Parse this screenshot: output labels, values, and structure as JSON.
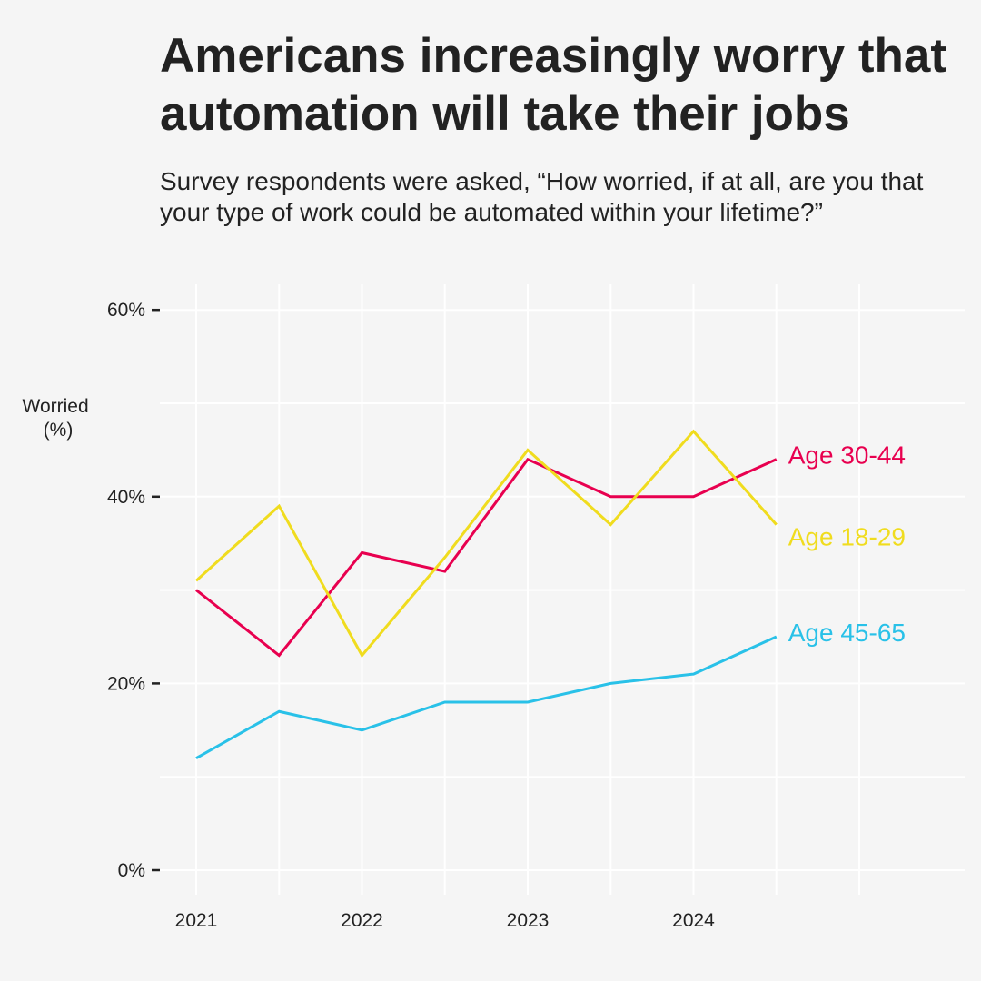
{
  "chart_data": {
    "type": "line",
    "title": "Americans increasingly worry that automation will take their jobs",
    "subtitle": "Survey respondents were asked, “How worried, if at all, are you that your type of work could be automated within your lifetime?”",
    "ylabel": "Worried (%)",
    "xlabel": "",
    "x": [
      2021,
      2021.5,
      2022,
      2022.5,
      2023,
      2023.5,
      2024,
      2024.5
    ],
    "xlim": [
      2020.8,
      2025.5
    ],
    "x_ticks": [
      2021,
      2022,
      2023,
      2024
    ],
    "x_tick_labels": [
      "2021",
      "2022",
      "2023",
      "2024"
    ],
    "ylim": [
      0,
      60
    ],
    "y_ticks": [
      0,
      20,
      40,
      60
    ],
    "y_tick_labels": [
      "0%",
      "20%",
      "40%",
      "60%"
    ],
    "grid": true,
    "legend": "direct labels at line ends",
    "series": [
      {
        "name": "Age 30-44",
        "color": "#e8004f",
        "values": [
          30,
          23,
          34,
          32,
          44,
          40,
          40,
          44
        ]
      },
      {
        "name": "Age 18-29",
        "color": "#f0dc1e",
        "values": [
          31,
          39,
          23,
          33.5,
          45,
          37,
          47,
          37
        ]
      },
      {
        "name": "Age 45-65",
        "color": "#29c1e8",
        "values": [
          12,
          17,
          15,
          18,
          18,
          20,
          21,
          25
        ]
      }
    ]
  }
}
